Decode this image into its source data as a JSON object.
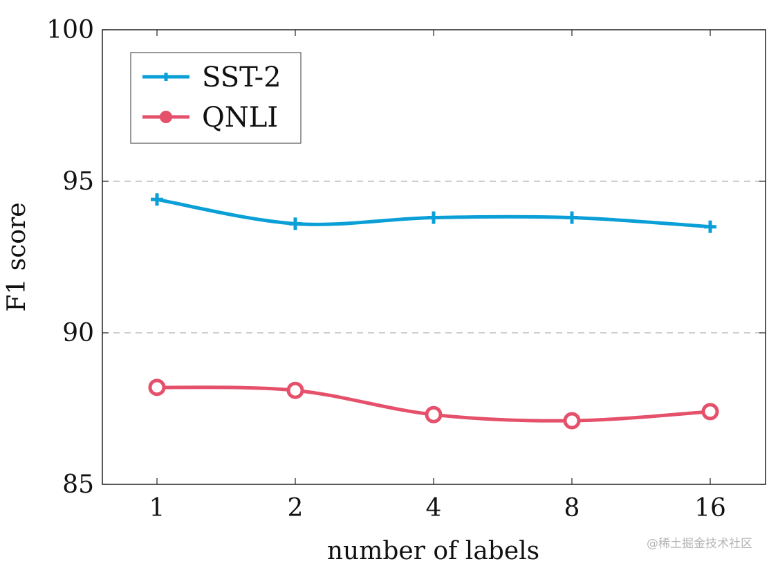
{
  "chart_data": {
    "type": "line",
    "title": "",
    "xlabel": "number of labels",
    "ylabel": "F1 score",
    "categories": [
      "1",
      "2",
      "4",
      "8",
      "16"
    ],
    "ylim": [
      85,
      100
    ],
    "yticks": [
      85,
      90,
      95,
      100
    ],
    "grid": "horizontal dashed at 90 and 95",
    "legend_position": "top-left",
    "series": [
      {
        "name": "SST-2",
        "values": [
          94.4,
          93.6,
          93.8,
          93.8,
          93.5
        ],
        "color": "#0a9fd6",
        "marker": "plus"
      },
      {
        "name": "QNLI",
        "values": [
          88.2,
          88.1,
          87.3,
          87.1,
          87.4
        ],
        "color": "#e5506a",
        "marker": "circle"
      }
    ]
  },
  "watermark": "@稀土掘金技术社区"
}
